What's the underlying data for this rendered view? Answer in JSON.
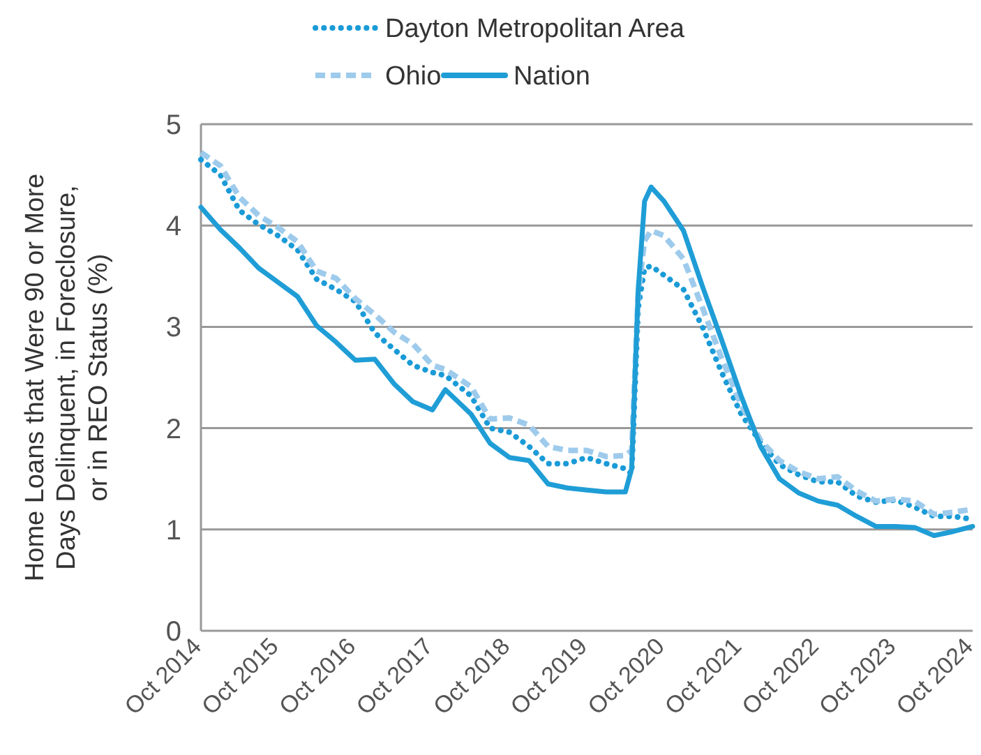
{
  "chart_data": {
    "type": "line",
    "ylabel": "Home Loans that Were 90 or More\nDays Delinquent, in Foreclosure,\nor in REO Status (%)",
    "x": [
      "2014-10",
      "2015-01",
      "2015-04",
      "2015-07",
      "2015-10",
      "2016-01",
      "2016-04",
      "2016-07",
      "2016-10",
      "2017-01",
      "2017-04",
      "2017-07",
      "2017-10",
      "2017-12",
      "2018-04",
      "2018-07",
      "2018-10",
      "2019-01",
      "2019-04",
      "2019-07",
      "2019-10",
      "2020-01",
      "2020-04",
      "2020-05",
      "2020-06",
      "2020-07",
      "2020-08",
      "2020-10",
      "2021-01",
      "2021-04",
      "2021-07",
      "2021-10",
      "2022-01",
      "2022-04",
      "2022-07",
      "2022-10",
      "2023-01",
      "2023-04",
      "2023-07",
      "2023-10",
      "2024-01",
      "2024-04",
      "2024-07",
      "2024-10"
    ],
    "series": [
      {
        "name": "Dayton Metropolitan Area",
        "color": "#1a9bd7",
        "line_style": "dotted",
        "values": [
          4.65,
          4.5,
          4.15,
          4.01,
          3.9,
          3.76,
          3.47,
          3.37,
          3.25,
          2.94,
          2.78,
          2.62,
          2.55,
          2.52,
          2.32,
          2.0,
          1.96,
          1.82,
          1.65,
          1.65,
          1.71,
          1.65,
          1.6,
          1.55,
          3.19,
          3.58,
          3.6,
          3.51,
          3.37,
          3.0,
          2.55,
          2.14,
          1.86,
          1.64,
          1.54,
          1.47,
          1.47,
          1.33,
          1.27,
          1.29,
          1.22,
          1.13,
          1.13,
          1.1
        ]
      },
      {
        "name": "Ohio",
        "color": "#9ecbec",
        "line_style": "dashed",
        "values": [
          4.72,
          4.59,
          4.28,
          4.1,
          3.98,
          3.84,
          3.55,
          3.48,
          3.28,
          3.12,
          2.95,
          2.83,
          2.62,
          2.58,
          2.41,
          2.09,
          2.1,
          2.03,
          1.82,
          1.78,
          1.78,
          1.72,
          1.73,
          1.78,
          3.33,
          3.85,
          3.95,
          3.9,
          3.67,
          3.19,
          2.69,
          2.23,
          1.88,
          1.68,
          1.57,
          1.5,
          1.52,
          1.38,
          1.28,
          1.3,
          1.28,
          1.15,
          1.17,
          1.2
        ]
      },
      {
        "name": "Nation",
        "color": "#1f9dd6",
        "line_style": "solid",
        "values": [
          4.18,
          3.96,
          3.78,
          3.58,
          3.44,
          3.3,
          3.01,
          2.85,
          2.67,
          2.68,
          2.44,
          2.26,
          2.18,
          2.38,
          2.14,
          1.85,
          1.71,
          1.68,
          1.45,
          1.41,
          1.39,
          1.37,
          1.37,
          1.6,
          3.37,
          4.24,
          4.38,
          4.24,
          3.95,
          3.4,
          2.87,
          2.32,
          1.82,
          1.5,
          1.36,
          1.28,
          1.24,
          1.13,
          1.03,
          1.03,
          1.02,
          0.94,
          0.98,
          1.03
        ]
      }
    ],
    "xlim": [
      "2014-10",
      "2024-10"
    ],
    "xticks": [
      {
        "value": "2014-10",
        "label": "Oct 2014"
      },
      {
        "value": "2015-10",
        "label": "Oct 2015"
      },
      {
        "value": "2016-10",
        "label": "Oct 2016"
      },
      {
        "value": "2017-10",
        "label": "Oct 2017"
      },
      {
        "value": "2018-10",
        "label": "Oct 2018"
      },
      {
        "value": "2019-10",
        "label": "Oct 2019"
      },
      {
        "value": "2020-10",
        "label": "Oct 2020"
      },
      {
        "value": "2021-10",
        "label": "Oct 2021"
      },
      {
        "value": "2022-10",
        "label": "Oct 2022"
      },
      {
        "value": "2023-10",
        "label": "Oct 2023"
      },
      {
        "value": "2024-10",
        "label": "Oct 2024"
      }
    ],
    "ylim": [
      0,
      5
    ],
    "yticks": [
      0,
      1,
      2,
      3,
      4,
      5
    ],
    "grid": "y",
    "legend": "top",
    "marker": "none"
  }
}
